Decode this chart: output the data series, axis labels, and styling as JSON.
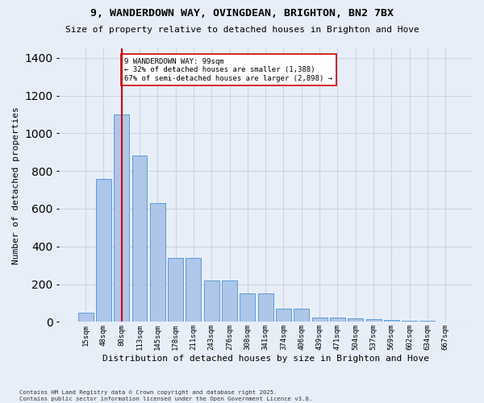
{
  "title": "9, WANDERDOWN WAY, OVINGDEAN, BRIGHTON, BN2 7BX",
  "subtitle": "Size of property relative to detached houses in Brighton and Hove",
  "xlabel": "Distribution of detached houses by size in Brighton and Hove",
  "ylabel": "Number of detached properties",
  "categories": [
    "15sqm",
    "48sqm",
    "80sqm",
    "113sqm",
    "145sqm",
    "178sqm",
    "211sqm",
    "243sqm",
    "276sqm",
    "308sqm",
    "341sqm",
    "374sqm",
    "406sqm",
    "439sqm",
    "471sqm",
    "504sqm",
    "537sqm",
    "569sqm",
    "602sqm",
    "634sqm",
    "667sqm"
  ],
  "values": [
    50,
    760,
    1100,
    880,
    630,
    340,
    340,
    220,
    220,
    150,
    150,
    70,
    70,
    25,
    25,
    20,
    15,
    10,
    8,
    5,
    3
  ],
  "bar_color": "#aec6e8",
  "bar_edge_color": "#5b9bd5",
  "grid_color": "#c8d4e8",
  "bg_color": "#e8eef8",
  "vline_x_index": 2,
  "vline_color": "#cc0000",
  "annotation_text": "9 WANDERDOWN WAY: 99sqm\n← 32% of detached houses are smaller (1,388)\n67% of semi-detached houses are larger (2,898) →",
  "annotation_box_color": "#ffffff",
  "annotation_box_edge_color": "#cc0000",
  "footer": "Contains HM Land Registry data © Crown copyright and database right 2025.\nContains public sector information licensed under the Open Government Licence v3.0.",
  "ylim": [
    0,
    1450
  ],
  "yticks": [
    0,
    200,
    400,
    600,
    800,
    1000,
    1200,
    1400
  ]
}
